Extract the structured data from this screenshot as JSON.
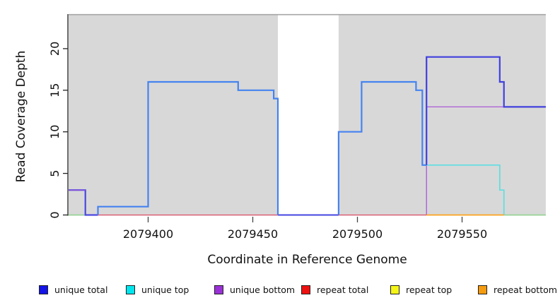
{
  "figure": {
    "ylab": "Read Coverage Depth",
    "xlab": "Coordinate in Reference Genome"
  },
  "chart_data": {
    "type": "line",
    "subtype": "step-coverage-plot",
    "title": "",
    "xlabel": "Coordinate in Reference Genome",
    "ylabel": "Read Coverage Depth",
    "xlim": [
      2079362,
      2079590
    ],
    "ylim": [
      0,
      24
    ],
    "x_ticks": [
      2079400,
      2079450,
      2079500,
      2079550
    ],
    "y_ticks": [
      0,
      5,
      10,
      15,
      20
    ],
    "grid": false,
    "legend_position": "bottom",
    "panel_background_color": "#d8d8d8",
    "panel_top_border_color": "#a6a6a6",
    "coverage_regions": [
      [
        2079362,
        2079462
      ],
      [
        2079491,
        2079590
      ]
    ],
    "uncovered_gap": [
      2079462,
      2079491
    ],
    "series": [
      {
        "name": "unique total",
        "legend_color": "#1414e8",
        "segments": [
          [
            2079362,
            2079370,
            3
          ],
          [
            2079370,
            2079376,
            0
          ],
          [
            2079376,
            2079400,
            1
          ],
          [
            2079400,
            2079443,
            16
          ],
          [
            2079443,
            2079460,
            15
          ],
          [
            2079460,
            2079462,
            14
          ],
          [
            2079462,
            2079491,
            0
          ],
          [
            2079491,
            2079502,
            10
          ],
          [
            2079502,
            2079528,
            16
          ],
          [
            2079528,
            2079531,
            15
          ],
          [
            2079531,
            2079533,
            6
          ],
          [
            2079533,
            2079568,
            19
          ],
          [
            2079568,
            2079570,
            16
          ],
          [
            2079570,
            2079590,
            13
          ]
        ]
      },
      {
        "name": "unique top",
        "legend_color": "#00e5ee",
        "segments": [
          [
            2079533,
            2079568,
            6
          ],
          [
            2079568,
            2079570,
            3
          ],
          [
            2079570,
            2079571,
            0
          ]
        ]
      },
      {
        "name": "unique bottom",
        "legend_color": "#9b30d9",
        "segments": [
          [
            2079362,
            2079370,
            3
          ],
          [
            2079370,
            2079533,
            0
          ],
          [
            2079533,
            2079590,
            13
          ]
        ]
      },
      {
        "name": "repeat total",
        "legend_color": "#ee1111",
        "segments": [
          [
            2079376,
            2079533,
            0
          ]
        ]
      },
      {
        "name": "repeat top",
        "legend_color": "#f5f516",
        "segments": []
      },
      {
        "name": "repeat bottom",
        "legend_color": "#f59b0f",
        "segments": [
          [
            2079533,
            2079570,
            0
          ]
        ]
      },
      {
        "name": "unlabeled green zero line",
        "legend_color": "#8fd48f",
        "segments": [
          [
            2079362,
            2079370,
            0
          ],
          [
            2079570,
            2079590,
            0
          ]
        ]
      }
    ],
    "render_lines": [
      {
        "name": "unique-bottom-line",
        "color": "#ac58d8",
        "width": 1.3,
        "points": [
          [
            2079533,
            0
          ],
          [
            2079533,
            13
          ],
          [
            2079590,
            13
          ]
        ]
      },
      {
        "name": "unique-top-line",
        "color": "#5fdde0",
        "width": 1.7,
        "points": [
          [
            2079533,
            6
          ],
          [
            2079568,
            6
          ],
          [
            2079568,
            3
          ],
          [
            2079570,
            3
          ],
          [
            2079570,
            0
          ]
        ]
      },
      {
        "name": "repeat-total-line",
        "color": "#e05068",
        "width": 1.3,
        "points": [
          [
            2079376,
            0
          ],
          [
            2079533,
            0
          ]
        ]
      },
      {
        "name": "repeat-bottom-line",
        "color": "#ffa41e",
        "width": 1.8,
        "points": [
          [
            2079533,
            0
          ],
          [
            2079570,
            0
          ]
        ]
      },
      {
        "name": "green-zero-left",
        "color": "#8fd48f",
        "width": 1.6,
        "points": [
          [
            2079362,
            0
          ],
          [
            2079370,
            0
          ]
        ]
      },
      {
        "name": "green-zero-right",
        "color": "#8fd48f",
        "width": 1.6,
        "points": [
          [
            2079570,
            0
          ],
          [
            2079590,
            0
          ]
        ]
      },
      {
        "name": "unique-total-far-left-blend",
        "color": "#4a48e0",
        "width": 2.2,
        "points": [
          [
            2079362,
            3
          ],
          [
            2079370,
            3
          ],
          [
            2079370,
            0
          ],
          [
            2079376,
            0
          ]
        ]
      },
      {
        "name": "unique-bottom-far-left-overlay",
        "color": "#9a4fd8",
        "width": 1.0,
        "points": [
          [
            2079362,
            3
          ],
          [
            2079370,
            3
          ]
        ]
      },
      {
        "name": "unique-total-gap-blend",
        "color": "#4545e2",
        "width": 2.0,
        "points": [
          [
            2079462,
            0
          ],
          [
            2079491,
            0
          ]
        ]
      },
      {
        "name": "unique-total-left",
        "color": "#4583f0",
        "width": 2.2,
        "points": [
          [
            2079376,
            0
          ],
          [
            2079376,
            1
          ],
          [
            2079400,
            1
          ],
          [
            2079400,
            16
          ],
          [
            2079443,
            16
          ],
          [
            2079443,
            15
          ],
          [
            2079460,
            15
          ],
          [
            2079460,
            14
          ],
          [
            2079462,
            14
          ],
          [
            2079462,
            0
          ]
        ]
      },
      {
        "name": "unique-total-mid",
        "color": "#4583f0",
        "width": 2.2,
        "points": [
          [
            2079491,
            0
          ],
          [
            2079491,
            10
          ],
          [
            2079502,
            10
          ],
          [
            2079502,
            16
          ],
          [
            2079528,
            16
          ],
          [
            2079528,
            15
          ],
          [
            2079531,
            15
          ],
          [
            2079531,
            6
          ],
          [
            2079533,
            6
          ]
        ]
      },
      {
        "name": "unique-total-right-blend",
        "color": "#4040de",
        "width": 2.2,
        "points": [
          [
            2079533,
            6
          ],
          [
            2079533,
            19
          ],
          [
            2079568,
            19
          ],
          [
            2079568,
            16
          ],
          [
            2079570,
            16
          ],
          [
            2079570,
            13
          ],
          [
            2079590,
            13
          ]
        ]
      }
    ]
  },
  "legend": {
    "items": [
      {
        "label": "unique total",
        "fill": "#1414e8"
      },
      {
        "label": "unique top",
        "fill": "#00e5ee"
      },
      {
        "label": "unique bottom",
        "fill": "#9b30d9"
      },
      {
        "label": "repeat total",
        "fill": "#ee1111"
      },
      {
        "label": "repeat top",
        "fill": "#f5f516"
      },
      {
        "label": "repeat bottom",
        "fill": "#f59b0f"
      }
    ]
  }
}
